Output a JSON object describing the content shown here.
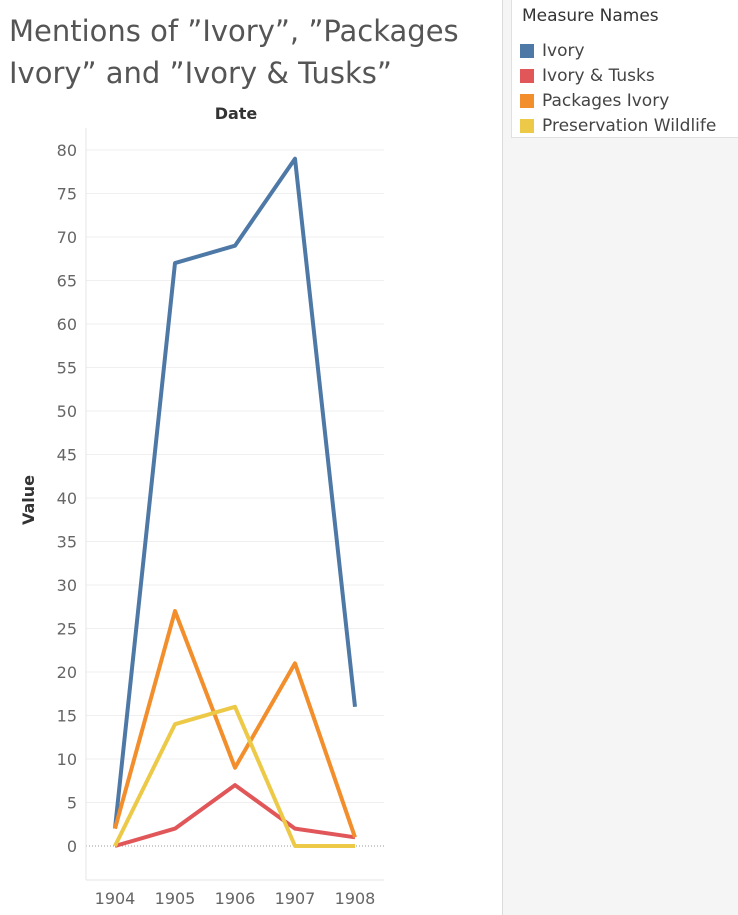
{
  "title": "Mentions of  ”Ivory”, ”Packages Ivory” and ”Ivory & Tusks”",
  "legend": {
    "title": "Measure Names",
    "items": [
      {
        "label": "Ivory",
        "color": "#4e79a7"
      },
      {
        "label": "Ivory & Tusks",
        "color": "#e15759"
      },
      {
        "label": "Packages Ivory",
        "color": "#f28e2b"
      },
      {
        "label": "Preservation Wildlife",
        "color": "#edc948"
      }
    ]
  },
  "chart_data": {
    "type": "line",
    "xlabel": "Date",
    "ylabel": "Value",
    "x": [
      "1904",
      "1905",
      "1906",
      "1907",
      "1908"
    ],
    "ylim": [
      0,
      80
    ],
    "yticks": [
      0,
      5,
      10,
      15,
      20,
      25,
      30,
      35,
      40,
      45,
      50,
      55,
      60,
      65,
      70,
      75,
      80
    ],
    "grid": true,
    "legend_position": "top-right",
    "series": [
      {
        "name": "Ivory",
        "color": "#4e79a7",
        "values": [
          2,
          67,
          69,
          79,
          16
        ]
      },
      {
        "name": "Ivory & Tusks",
        "color": "#e15759",
        "values": [
          0,
          2,
          7,
          2,
          1
        ]
      },
      {
        "name": "Packages Ivory",
        "color": "#f28e2b",
        "values": [
          2,
          27,
          9,
          21,
          1
        ]
      },
      {
        "name": "Preservation Wildlife",
        "color": "#edc948",
        "values": [
          0,
          14,
          16,
          0,
          0
        ]
      }
    ]
  }
}
